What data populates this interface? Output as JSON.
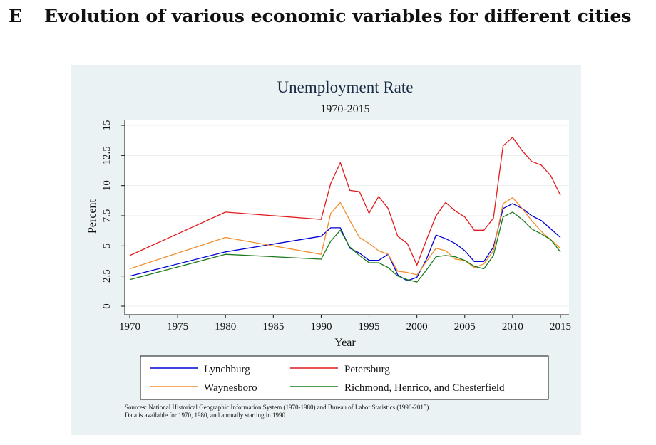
{
  "heading": {
    "letter": "E",
    "text": "Evolution of various economic variables for different cities"
  },
  "chart_data": {
    "type": "line",
    "title": "Unemployment Rate",
    "subtitle": "1970-2015",
    "xlabel": "Year",
    "ylabel": "Percent",
    "xlim": [
      1970,
      2015
    ],
    "ylim": [
      0,
      15
    ],
    "xticks": [
      "1970",
      "1975",
      "1980",
      "1985",
      "1990",
      "1995",
      "2000",
      "2005",
      "2010",
      "2015"
    ],
    "yticks": [
      "0",
      "2.5",
      "5",
      "7.5",
      "10",
      "12.5",
      "15"
    ],
    "grid": true,
    "legend_position": "bottom",
    "series": [
      {
        "name": "Lynchburg",
        "color": "#0000d4",
        "x": [
          1970,
          1980,
          1990,
          1991,
          1992,
          1993,
          1994,
          1995,
          1996,
          1997,
          1998,
          1999,
          2000,
          2001,
          2002,
          2003,
          2004,
          2005,
          2006,
          2007,
          2008,
          2009,
          2010,
          2011,
          2012,
          2013,
          2014,
          2015
        ],
        "y": [
          2.5,
          4.5,
          5.8,
          6.5,
          6.5,
          4.8,
          4.4,
          3.8,
          3.8,
          4.3,
          2.6,
          2.1,
          2.4,
          3.9,
          5.9,
          5.6,
          5.2,
          4.6,
          3.7,
          3.7,
          4.9,
          8.1,
          8.5,
          8.1,
          7.5,
          7.1,
          6.4,
          5.7
        ]
      },
      {
        "name": "Petersburg",
        "color": "#e41a1c",
        "x": [
          1970,
          1980,
          1990,
          1991,
          1992,
          1993,
          1994,
          1995,
          1996,
          1997,
          1998,
          1999,
          2000,
          2001,
          2002,
          2003,
          2004,
          2005,
          2006,
          2007,
          2008,
          2009,
          2010,
          2011,
          2012,
          2013,
          2014,
          2015
        ],
        "y": [
          4.2,
          7.8,
          7.2,
          10.2,
          11.9,
          9.6,
          9.5,
          7.7,
          9.1,
          8.1,
          5.8,
          5.2,
          3.4,
          5.5,
          7.5,
          8.6,
          7.9,
          7.4,
          6.3,
          6.3,
          7.3,
          13.3,
          14.0,
          12.9,
          12.0,
          11.7,
          10.8,
          9.2
        ]
      },
      {
        "name": "Waynesboro",
        "color": "#f28e2b",
        "x": [
          1970,
          1980,
          1990,
          1991,
          1992,
          1993,
          1994,
          1995,
          1996,
          1997,
          1998,
          1999,
          2000,
          2001,
          2002,
          2003,
          2004,
          2005,
          2006,
          2007,
          2008,
          2009,
          2010,
          2011,
          2012,
          2013,
          2014,
          2015
        ],
        "y": [
          3.1,
          5.7,
          4.3,
          7.7,
          8.6,
          7.1,
          5.7,
          5.2,
          4.6,
          4.3,
          2.9,
          2.8,
          2.6,
          3.7,
          4.8,
          4.6,
          3.9,
          3.8,
          3.2,
          3.5,
          4.6,
          8.5,
          9.0,
          8.1,
          7.1,
          6.2,
          5.5,
          4.8
        ]
      },
      {
        "name": "Richmond, Henrico, and Chesterfield",
        "color": "#1a7a1a",
        "x": [
          1970,
          1980,
          1990,
          1991,
          1992,
          1993,
          1994,
          1995,
          1996,
          1997,
          1998,
          1999,
          2000,
          2001,
          2002,
          2003,
          2004,
          2005,
          2006,
          2007,
          2008,
          2009,
          2010,
          2011,
          2012,
          2013,
          2014,
          2015
        ],
        "y": [
          2.2,
          4.3,
          3.9,
          5.4,
          6.3,
          4.9,
          4.2,
          3.6,
          3.6,
          3.2,
          2.5,
          2.2,
          2.0,
          3.0,
          4.1,
          4.2,
          4.1,
          3.8,
          3.3,
          3.1,
          4.2,
          7.4,
          7.8,
          7.2,
          6.4,
          6.0,
          5.5,
          4.5
        ]
      }
    ]
  },
  "sources": {
    "line1": "Sources: National Historical Geographic Information System (1970-1980) and Bureau of Labor Statistics (1990-2015).",
    "line2": "Data is available for 1970, 1980, and annually starting in 1990."
  }
}
